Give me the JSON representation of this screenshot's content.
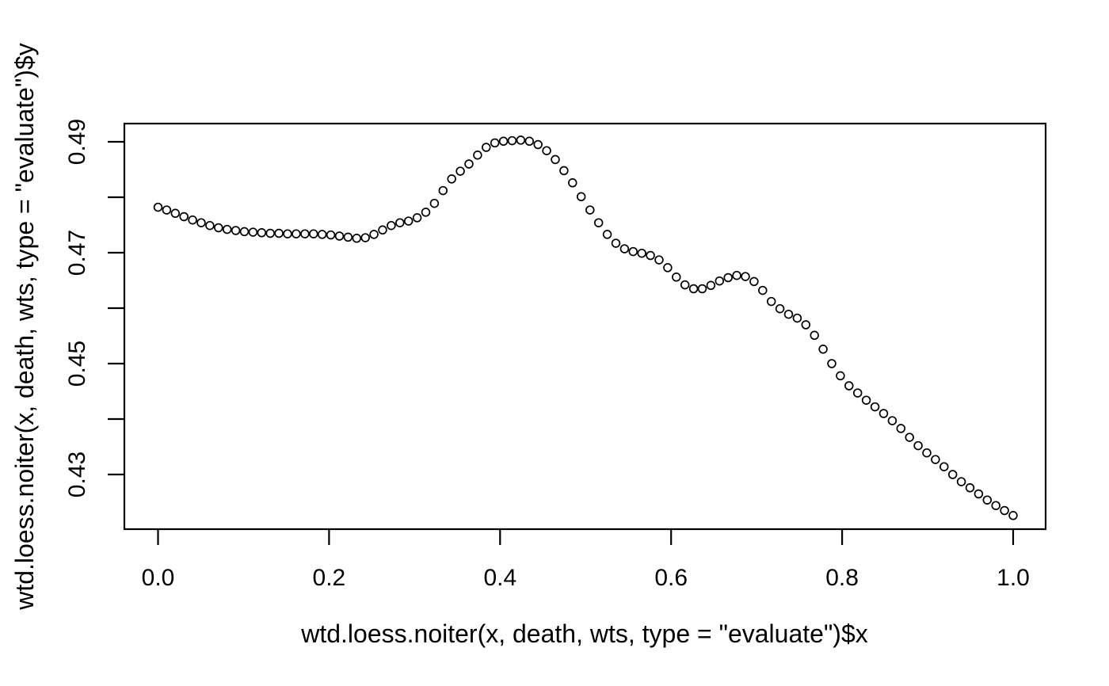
{
  "chart_data": {
    "type": "scatter",
    "title": "",
    "xlabel": "wtd.loess.noiter(x, death, wts, type = \"evaluate\")$x",
    "ylabel": "wtd.loess.noiter(x, death, wts, type = \"evaluate\")$y",
    "marker": "open-circle",
    "grid": false,
    "legend": null,
    "colors": {
      "stroke": "#000000",
      "background": "#ffffff"
    },
    "x_axis": {
      "range_shown": [
        -0.04,
        1.04
      ],
      "tick_values": [
        0.0,
        0.2,
        0.4,
        0.6,
        0.8,
        1.0
      ],
      "tick_labels": [
        "0.0",
        "0.2",
        "0.4",
        "0.6",
        "0.8",
        "1.0"
      ]
    },
    "y_axis": {
      "range_shown": [
        0.4195,
        0.4935
      ],
      "tick_values": [
        0.43,
        0.44,
        0.45,
        0.46,
        0.47,
        0.48,
        0.49
      ],
      "tick_labels": [
        "0.43",
        "",
        "0.45",
        "",
        "0.47",
        "",
        "0.49"
      ]
    },
    "points": {
      "x": [
        0.0,
        0.0101,
        0.0202,
        0.0303,
        0.0404,
        0.0505,
        0.0606,
        0.0707,
        0.0808,
        0.0909,
        0.101,
        0.1111,
        0.1212,
        0.1313,
        0.1414,
        0.1515,
        0.1616,
        0.1717,
        0.1818,
        0.1919,
        0.202,
        0.2121,
        0.2222,
        0.2323,
        0.2424,
        0.2525,
        0.2626,
        0.2727,
        0.2828,
        0.2929,
        0.303,
        0.3131,
        0.3232,
        0.3333,
        0.3434,
        0.3535,
        0.3636,
        0.3737,
        0.3838,
        0.3939,
        0.404,
        0.4141,
        0.4242,
        0.4343,
        0.4444,
        0.4545,
        0.4646,
        0.4747,
        0.4848,
        0.4949,
        0.5051,
        0.5152,
        0.5253,
        0.5354,
        0.5455,
        0.5556,
        0.5657,
        0.5758,
        0.5859,
        0.596,
        0.6061,
        0.6162,
        0.6263,
        0.6364,
        0.6465,
        0.6566,
        0.6667,
        0.6768,
        0.6869,
        0.697,
        0.7071,
        0.7172,
        0.7273,
        0.7374,
        0.7475,
        0.7576,
        0.7677,
        0.7778,
        0.7879,
        0.798,
        0.8081,
        0.8182,
        0.8283,
        0.8384,
        0.8485,
        0.8586,
        0.8687,
        0.8788,
        0.8889,
        0.899,
        0.9091,
        0.9192,
        0.9293,
        0.9394,
        0.9495,
        0.9596,
        0.9697,
        0.9798,
        0.9899,
        1.0
      ],
      "y": [
        0.4782,
        0.4777,
        0.4771,
        0.4765,
        0.4759,
        0.4754,
        0.4749,
        0.4745,
        0.4742,
        0.474,
        0.4738,
        0.4737,
        0.4736,
        0.4735,
        0.4735,
        0.4734,
        0.4734,
        0.4734,
        0.4734,
        0.4733,
        0.4732,
        0.473,
        0.4728,
        0.4726,
        0.4727,
        0.4733,
        0.4741,
        0.4749,
        0.4754,
        0.4757,
        0.4763,
        0.4773,
        0.4789,
        0.4812,
        0.4833,
        0.4847,
        0.486,
        0.4876,
        0.489,
        0.4898,
        0.4901,
        0.4902,
        0.4903,
        0.4901,
        0.4895,
        0.4884,
        0.4868,
        0.4848,
        0.4826,
        0.4801,
        0.4777,
        0.4754,
        0.4733,
        0.4717,
        0.4707,
        0.4702,
        0.4699,
        0.4695,
        0.4687,
        0.4673,
        0.4656,
        0.4642,
        0.4635,
        0.4635,
        0.4641,
        0.4649,
        0.4655,
        0.4659,
        0.4657,
        0.4648,
        0.4632,
        0.4612,
        0.4599,
        0.4589,
        0.4582,
        0.457,
        0.4551,
        0.4526,
        0.45,
        0.4478,
        0.446,
        0.4447,
        0.4434,
        0.4422,
        0.441,
        0.4397,
        0.4383,
        0.4367,
        0.4352,
        0.4339,
        0.4327,
        0.4314,
        0.43,
        0.4287,
        0.4276,
        0.4265,
        0.4254,
        0.4244,
        0.4235,
        0.4226
      ]
    }
  }
}
